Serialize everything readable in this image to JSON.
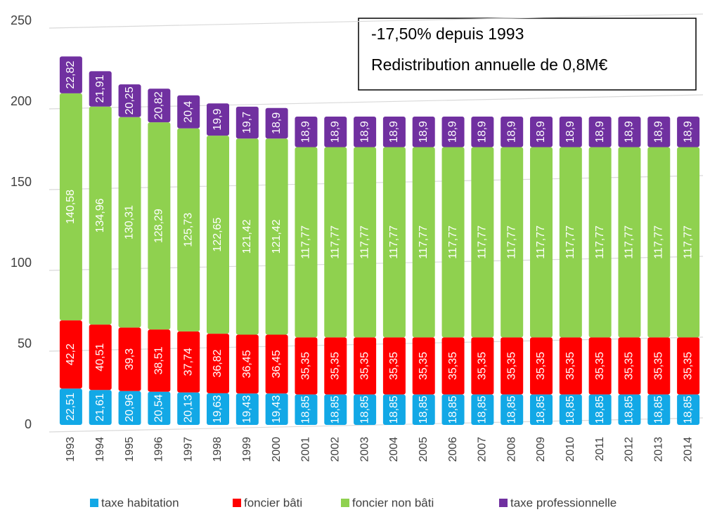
{
  "chart_data": {
    "type": "stacked_bar",
    "annotations": [
      "-17,50% depuis 1993",
      "Redistribution annuelle de 0,8M€"
    ],
    "categories": [
      "1993",
      "1994",
      "1995",
      "1996",
      "1997",
      "1998",
      "1999",
      "2000",
      "2001",
      "2002",
      "2003",
      "2004",
      "2005",
      "2006",
      "2007",
      "2008",
      "2009",
      "2010",
      "2011",
      "2012",
      "2013",
      "2014"
    ],
    "series": [
      {
        "name": "taxe habitation",
        "color": "#12a8e6",
        "values": [
          22.51,
          21.61,
          20.96,
          20.54,
          20.13,
          19.63,
          19.43,
          19.43,
          18.85,
          18.85,
          18.85,
          18.85,
          18.85,
          18.85,
          18.85,
          18.85,
          18.85,
          18.85,
          18.85,
          18.85,
          18.85,
          18.85
        ],
        "value_labels": [
          "22,51",
          "21,61",
          "20,96",
          "20,54",
          "20,13",
          "19,63",
          "19,43",
          "19,43",
          "18,85",
          "18,85",
          "18,85",
          "18,85",
          "18,85",
          "18,85",
          "18,85",
          "18,85",
          "18,85",
          "18,85",
          "18,85",
          "18,85",
          "18,85",
          "18,85"
        ]
      },
      {
        "name": "foncier bâti",
        "color": "#ff0000",
        "values": [
          42.2,
          40.51,
          39.3,
          38.51,
          37.74,
          36.82,
          36.45,
          36.45,
          35.35,
          35.35,
          35.35,
          35.35,
          35.35,
          35.35,
          35.35,
          35.35,
          35.35,
          35.35,
          35.35,
          35.35,
          35.35,
          35.35
        ],
        "value_labels": [
          "42,2",
          "40,51",
          "39,3",
          "38,51",
          "37,74",
          "36,82",
          "36,45",
          "36,45",
          "35,35",
          "35,35",
          "35,35",
          "35,35",
          "35,35",
          "35,35",
          "35,35",
          "35,35",
          "35,35",
          "35,35",
          "35,35",
          "35,35",
          "35,35",
          "35,35"
        ]
      },
      {
        "name": "foncier non bâti",
        "color": "#8fd14f",
        "values": [
          140.58,
          134.96,
          130.31,
          128.29,
          125.73,
          122.65,
          121.42,
          121.42,
          117.77,
          117.77,
          117.77,
          117.77,
          117.77,
          117.77,
          117.77,
          117.77,
          117.77,
          117.77,
          117.77,
          117.77,
          117.77,
          117.77
        ],
        "value_labels": [
          "140,58",
          "134,96",
          "130,31",
          "128,29",
          "125,73",
          "122,65",
          "121,42",
          "121,42",
          "117,77",
          "117,77",
          "117,77",
          "117,77",
          "117,77",
          "117,77",
          "117,77",
          "117,77",
          "117,77",
          "117,77",
          "117,77",
          "117,77",
          "117,77",
          "117,77"
        ]
      },
      {
        "name": "taxe professionnelle",
        "color": "#7030a0",
        "values": [
          22.82,
          21.91,
          20.25,
          20.82,
          20.4,
          19.9,
          19.7,
          18.9,
          18.9,
          18.9,
          18.9,
          18.9,
          18.9,
          18.9,
          18.9,
          18.9,
          18.9,
          18.9,
          18.9,
          18.9,
          18.9,
          18.9
        ],
        "value_labels": [
          "22,82",
          "21,91",
          "20,25",
          "20,82",
          "20,4",
          "19,9",
          "19,7",
          "18,9",
          "18,9",
          "18,9",
          "18,9",
          "18,9",
          "18,9",
          "18,9",
          "18,9",
          "18,9",
          "18,9",
          "18,9",
          "18,9",
          "18,9",
          "18,9",
          "18,9"
        ]
      }
    ],
    "ylim": [
      0,
      250
    ],
    "yticks": [
      0,
      50,
      100,
      150,
      200,
      250
    ],
    "grid": true,
    "legend": "bottom"
  }
}
